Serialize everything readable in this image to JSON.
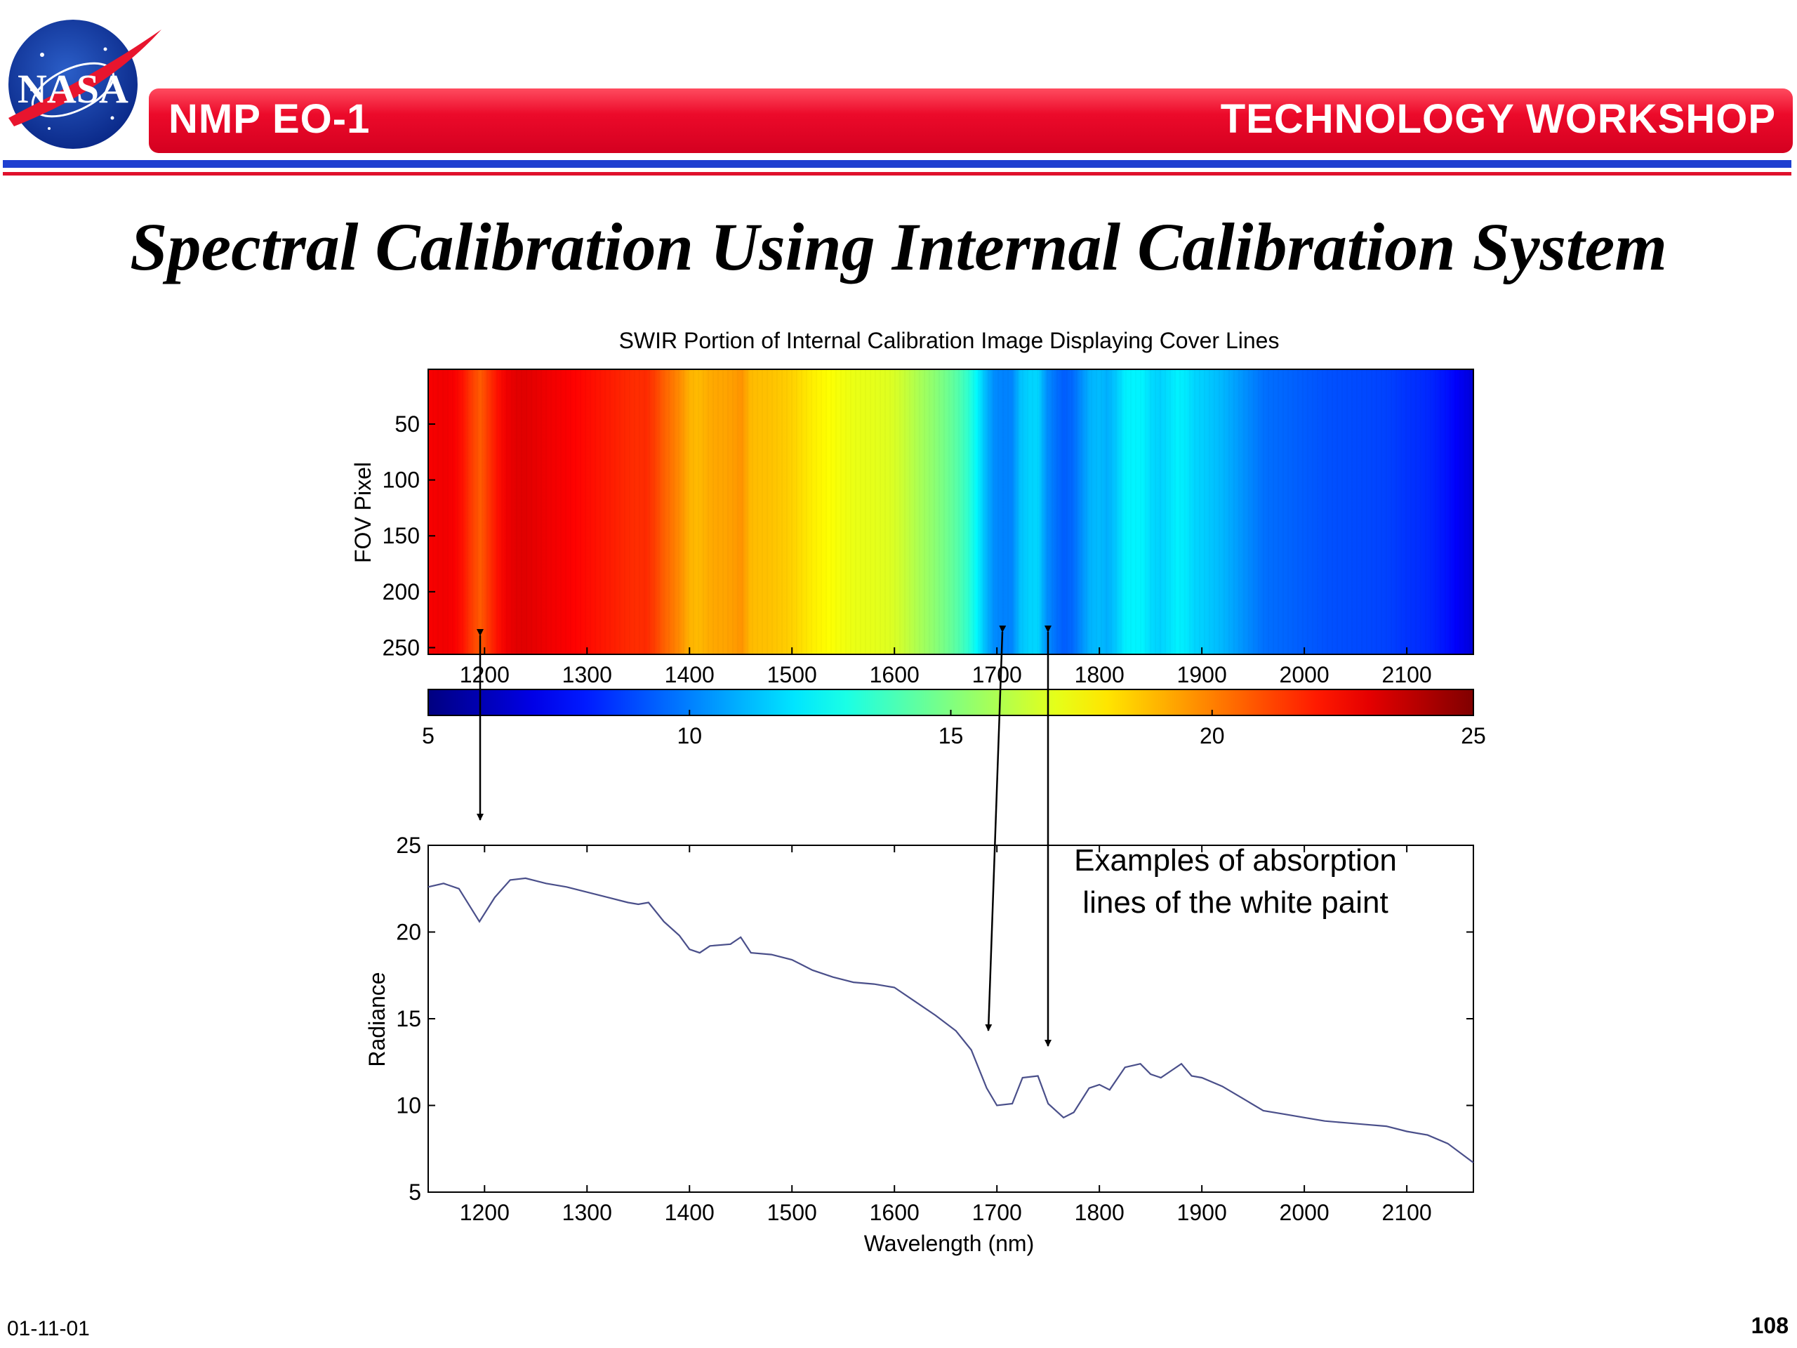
{
  "logo": {
    "text": "NASA"
  },
  "header": {
    "left": "NMP EO-1",
    "right": "TECHNOLOGY WORKSHOP"
  },
  "title": "Spectral Calibration Using Internal Calibration System",
  "footer": {
    "date": "01-11-01",
    "page": "108"
  },
  "colors": {
    "banner_red": "#ec0a2a",
    "rule_blue": "#1e3fd0",
    "line_color": "#4a4f8a"
  },
  "chart_data": [
    {
      "type": "heatmap",
      "title": "SWIR Portion of Internal Calibration Image Displaying Cover Lines",
      "xlabel": "",
      "ylabel": "FOV Pixel",
      "x_ticks": [
        1200,
        1300,
        1400,
        1500,
        1600,
        1700,
        1800,
        1900,
        2000,
        2100
      ],
      "y_ticks": [
        50,
        100,
        150,
        200,
        250
      ],
      "xlim": [
        1145,
        2165
      ],
      "ylim": [
        1,
        256
      ],
      "colorbar": {
        "range": [
          5,
          25
        ],
        "ticks": [
          5,
          10,
          15,
          20,
          25
        ],
        "colormap": "jet"
      },
      "column_values_source": "radiance profile (chart 2)"
    },
    {
      "type": "line",
      "title": "",
      "xlabel": "Wavelength (nm)",
      "ylabel": "Radiance",
      "x_ticks": [
        1200,
        1300,
        1400,
        1500,
        1600,
        1700,
        1800,
        1900,
        2000,
        2100
      ],
      "y_ticks": [
        5,
        10,
        15,
        20,
        25
      ],
      "xlim": [
        1145,
        2165
      ],
      "ylim": [
        5,
        25
      ],
      "annotation": [
        "Examples of absorption",
        "lines of the white paint"
      ],
      "series": [
        {
          "x": [
            1145,
            1160,
            1175,
            1195,
            1210,
            1225,
            1240,
            1260,
            1280,
            1300,
            1320,
            1340,
            1350,
            1360,
            1375,
            1390,
            1400,
            1410,
            1420,
            1440,
            1450,
            1460,
            1480,
            1500,
            1520,
            1540,
            1560,
            1580,
            1600,
            1620,
            1640,
            1660,
            1675,
            1690,
            1700,
            1715,
            1725,
            1740,
            1750,
            1765,
            1775,
            1790,
            1800,
            1810,
            1825,
            1840,
            1850,
            1860,
            1870,
            1880,
            1890,
            1900,
            1920,
            1940,
            1960,
            1980,
            2000,
            2020,
            2040,
            2060,
            2080,
            2100,
            2120,
            2140,
            2165
          ],
          "y": [
            22.6,
            22.8,
            22.5,
            20.6,
            22.0,
            23.0,
            23.1,
            22.8,
            22.6,
            22.3,
            22.0,
            21.7,
            21.6,
            21.7,
            20.6,
            19.8,
            19.0,
            18.8,
            19.2,
            19.3,
            19.7,
            18.8,
            18.7,
            18.4,
            17.8,
            17.4,
            17.1,
            17.0,
            16.8,
            16.0,
            15.2,
            14.3,
            13.2,
            11.0,
            10.0,
            10.1,
            11.6,
            11.7,
            10.1,
            9.3,
            9.6,
            11.0,
            11.2,
            10.9,
            12.2,
            12.4,
            11.8,
            11.6,
            12.0,
            12.4,
            11.7,
            11.6,
            11.1,
            10.4,
            9.7,
            9.5,
            9.3,
            9.1,
            9.0,
            8.9,
            8.8,
            8.5,
            8.3,
            7.8,
            6.7
          ]
        }
      ]
    }
  ]
}
